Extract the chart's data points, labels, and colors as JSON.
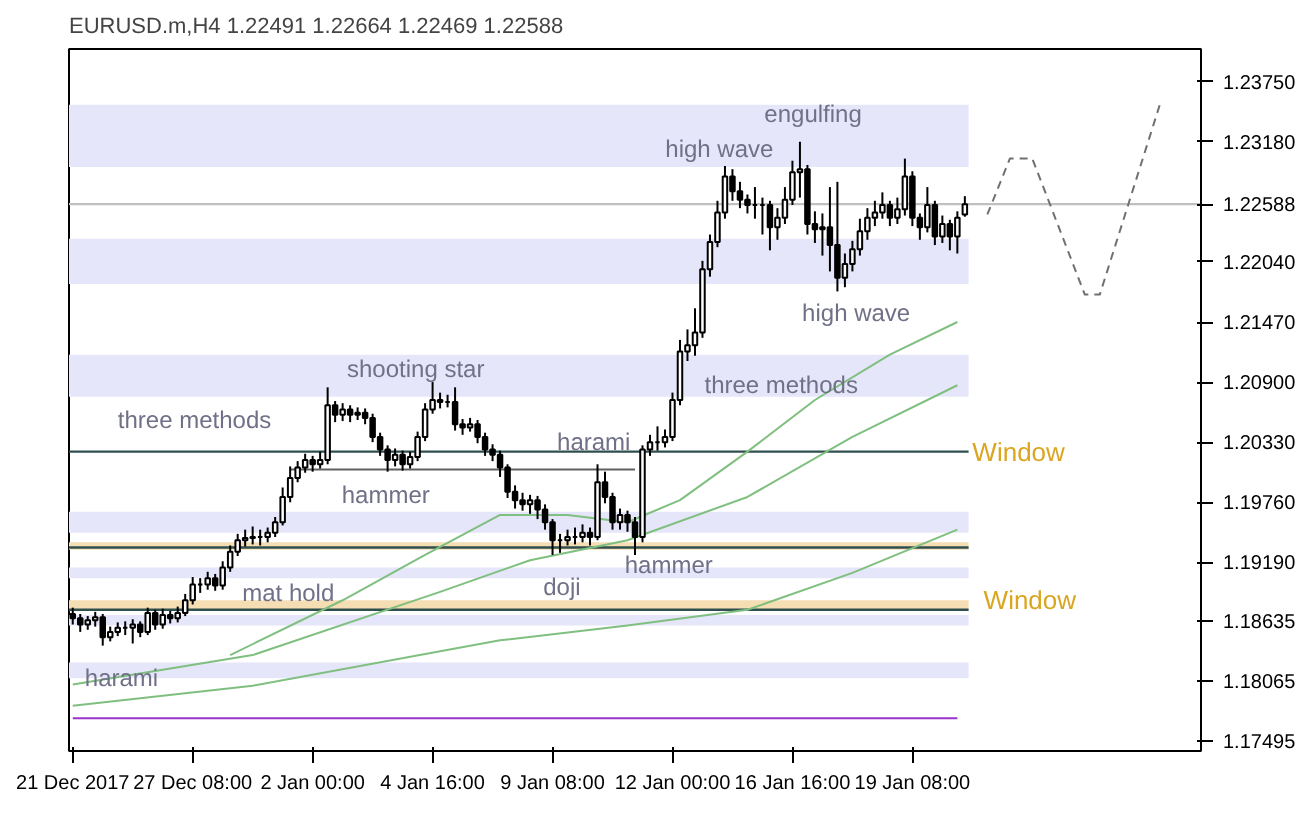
{
  "chart_data": {
    "type": "candlestick",
    "title": "EURUSD.m,H4  1.22491 1.22664 1.22469 1.22588",
    "categories": [
      "21 Dec 2017",
      null,
      null,
      null,
      null,
      null,
      null,
      null,
      null,
      null,
      null,
      null,
      null,
      null,
      null,
      null,
      "27 Dec 08:00",
      null,
      null,
      null,
      null,
      null,
      null,
      null,
      null,
      null,
      null,
      null,
      null,
      null,
      null,
      null,
      "2 Jan 00:00",
      null,
      null,
      null,
      null,
      null,
      null,
      null,
      null,
      null,
      null,
      null,
      null,
      null,
      null,
      null,
      "4 Jan 16:00",
      null,
      null,
      null,
      null,
      null,
      null,
      null,
      null,
      null,
      null,
      null,
      null,
      null,
      null,
      null,
      "9 Jan 08:00",
      null,
      null,
      null,
      null,
      null,
      null,
      null,
      null,
      null,
      null,
      null,
      null,
      null,
      null,
      null,
      "12 Jan 00:00",
      null,
      null,
      null,
      null,
      null,
      null,
      null,
      null,
      null,
      null,
      null,
      null,
      null,
      null,
      null,
      "16 Jan 16:00",
      null,
      null,
      null,
      null,
      null,
      null,
      null,
      null,
      null,
      null,
      null,
      null,
      null,
      null,
      null,
      "19 Jan 08:00",
      null,
      null,
      null,
      null,
      null,
      null,
      null,
      null,
      null,
      null,
      null,
      null,
      null,
      null,
      null,
      null,
      null,
      null,
      null,
      null,
      null,
      null,
      null,
      null,
      null,
      null,
      null,
      null,
      null,
      null,
      null,
      null,
      null,
      null,
      null,
      null,
      null,
      null
    ],
    "ohlc": [
      [
        1.187,
        1.1876,
        1.186,
        1.1866
      ],
      [
        1.1866,
        1.187,
        1.1853,
        1.186
      ],
      [
        1.186,
        1.1868,
        1.1855,
        1.1864
      ],
      [
        1.1864,
        1.1872,
        1.1858,
        1.1867
      ],
      [
        1.1867,
        1.187,
        1.184,
        1.1848
      ],
      [
        1.1848,
        1.1858,
        1.1844,
        1.1853
      ],
      [
        1.1853,
        1.1862,
        1.1849,
        1.1857
      ],
      [
        1.1857,
        1.1863,
        1.185,
        1.1857
      ],
      [
        1.1857,
        1.1865,
        1.1842,
        1.186
      ],
      [
        1.186,
        1.1863,
        1.1848,
        1.1853
      ],
      [
        1.1853,
        1.1876,
        1.185,
        1.1871
      ],
      [
        1.1871,
        1.1874,
        1.1855,
        1.186
      ],
      [
        1.186,
        1.1875,
        1.1856,
        1.1869
      ],
      [
        1.1869,
        1.1873,
        1.1861,
        1.1866
      ],
      [
        1.1866,
        1.1877,
        1.1862,
        1.1871
      ],
      [
        1.1871,
        1.1889,
        1.1868,
        1.1883
      ],
      [
        1.1883,
        1.1905,
        1.1879,
        1.1898
      ],
      [
        1.1898,
        1.1904,
        1.189,
        1.1898
      ],
      [
        1.1898,
        1.191,
        1.1893,
        1.1904
      ],
      [
        1.1904,
        1.1908,
        1.1892,
        1.1897
      ],
      [
        1.1897,
        1.192,
        1.1893,
        1.1914
      ],
      [
        1.1914,
        1.1935,
        1.191,
        1.1929
      ],
      [
        1.1929,
        1.1946,
        1.1925,
        1.194
      ],
      [
        1.194,
        1.195,
        1.1934,
        1.1942
      ],
      [
        1.1942,
        1.1953,
        1.1936,
        1.1943
      ],
      [
        1.1943,
        1.195,
        1.1935,
        1.1943
      ],
      [
        1.1943,
        1.1952,
        1.1938,
        1.1947
      ],
      [
        1.1947,
        1.1962,
        1.1943,
        1.1957
      ],
      [
        1.1957,
        1.199,
        1.1954,
        1.1981
      ],
      [
        1.1981,
        1.201,
        1.1976,
        1.1999
      ],
      [
        1.1999,
        1.2015,
        1.1995,
        1.2009
      ],
      [
        1.2009,
        1.2022,
        1.2004,
        1.2016
      ],
      [
        1.2016,
        1.202,
        1.2005,
        1.2012
      ],
      [
        1.2012,
        1.2024,
        1.2008,
        1.2016
      ],
      [
        1.2016,
        1.2085,
        1.2012,
        1.2068
      ],
      [
        1.2068,
        1.2072,
        1.2052,
        1.2059
      ],
      [
        1.2059,
        1.207,
        1.2053,
        1.2064
      ],
      [
        1.2064,
        1.2068,
        1.2052,
        1.2059
      ],
      [
        1.2059,
        1.2066,
        1.2054,
        1.2061
      ],
      [
        1.2061,
        1.2065,
        1.205,
        1.2056
      ],
      [
        1.2056,
        1.206,
        1.2033,
        1.2038
      ],
      [
        1.2038,
        1.2042,
        1.202,
        1.2026
      ],
      [
        1.2026,
        1.203,
        1.2005,
        1.2016
      ],
      [
        1.2016,
        1.2027,
        1.201,
        1.2021
      ],
      [
        1.2021,
        1.2025,
        1.2006,
        1.2012
      ],
      [
        1.2012,
        1.2024,
        1.2008,
        1.2019
      ],
      [
        1.2019,
        1.2043,
        1.2015,
        1.2038
      ],
      [
        1.2038,
        1.207,
        1.2034,
        1.2064
      ],
      [
        1.2064,
        1.209,
        1.206,
        1.2073
      ],
      [
        1.2073,
        1.208,
        1.2065,
        1.2071
      ],
      [
        1.2071,
        1.2078,
        1.2066,
        1.2071
      ],
      [
        1.2071,
        1.2085,
        1.2044,
        1.205
      ],
      [
        1.205,
        1.2055,
        1.204,
        1.2047
      ],
      [
        1.2047,
        1.2056,
        1.2043,
        1.205
      ],
      [
        1.205,
        1.2054,
        1.2032,
        1.2038
      ],
      [
        1.2038,
        1.2042,
        1.202,
        1.2026
      ],
      [
        1.2026,
        1.2031,
        1.2015,
        1.2021
      ],
      [
        1.2021,
        1.2025,
        1.2,
        1.2009
      ],
      [
        1.2009,
        1.2012,
        1.198,
        1.1986
      ],
      [
        1.1986,
        1.1992,
        1.197,
        1.1978
      ],
      [
        1.1978,
        1.1985,
        1.1968,
        1.1974
      ],
      [
        1.1974,
        1.1983,
        1.1965,
        1.1978
      ],
      [
        1.1978,
        1.1982,
        1.196,
        1.1969
      ],
      [
        1.1969,
        1.1974,
        1.195,
        1.1957
      ],
      [
        1.1957,
        1.196,
        1.1926,
        1.194
      ],
      [
        1.194,
        1.1946,
        1.1928,
        1.194
      ],
      [
        1.194,
        1.195,
        1.1935,
        1.1943
      ],
      [
        1.1943,
        1.1952,
        1.1936,
        1.1943
      ],
      [
        1.1943,
        1.1955,
        1.1938,
        1.1947
      ],
      [
        1.1947,
        1.1952,
        1.1935,
        1.1943
      ],
      [
        1.1943,
        1.2012,
        1.194,
        1.1995
      ],
      [
        1.1995,
        1.2005,
        1.1975,
        1.1981
      ],
      [
        1.1981,
        1.1985,
        1.195,
        1.1957
      ],
      [
        1.1957,
        1.197,
        1.195,
        1.1964
      ],
      [
        1.1964,
        1.1968,
        1.1948,
        1.1957
      ],
      [
        1.1957,
        1.1962,
        1.1926,
        1.1943
      ],
      [
        1.1943,
        1.203,
        1.1938,
        1.2026
      ],
      [
        1.2026,
        1.204,
        1.202,
        1.2033
      ],
      [
        1.2033,
        1.2048,
        1.2025,
        1.2033
      ],
      [
        1.2033,
        1.2045,
        1.2028,
        1.2038
      ],
      [
        1.2038,
        1.208,
        1.2034,
        1.2073
      ],
      [
        1.2073,
        1.213,
        1.2068,
        1.2119
      ],
      [
        1.2119,
        1.214,
        1.211,
        1.2125
      ],
      [
        1.2125,
        1.216,
        1.2115,
        1.2137
      ],
      [
        1.2137,
        1.2205,
        1.2132,
        1.2197
      ],
      [
        1.2197,
        1.223,
        1.219,
        1.2223
      ],
      [
        1.2223,
        1.2262,
        1.2218,
        1.2251
      ],
      [
        1.2251,
        1.2295,
        1.2245,
        1.2285
      ],
      [
        1.2285,
        1.2292,
        1.2262,
        1.2271
      ],
      [
        1.2271,
        1.228,
        1.2255,
        1.2263
      ],
      [
        1.2263,
        1.2268,
        1.225,
        1.2258
      ],
      [
        1.2258,
        1.2275,
        1.2245,
        1.2258
      ],
      [
        1.2258,
        1.2265,
        1.223,
        1.2258
      ],
      [
        1.2258,
        1.2262,
        1.2215,
        1.2237
      ],
      [
        1.2237,
        1.2255,
        1.2225,
        1.2246
      ],
      [
        1.2246,
        1.2275,
        1.224,
        1.2263
      ],
      [
        1.2263,
        1.23,
        1.2258,
        1.2289
      ],
      [
        1.2289,
        1.2318,
        1.2265,
        1.2292
      ],
      [
        1.2292,
        1.2296,
        1.223,
        1.224
      ],
      [
        1.224,
        1.2252,
        1.2222,
        1.2235
      ],
      [
        1.2235,
        1.225,
        1.221,
        1.2237
      ],
      [
        1.2237,
        1.2275,
        1.2195,
        1.222
      ],
      [
        1.222,
        1.228,
        1.2176,
        1.2189
      ],
      [
        1.2189,
        1.2212,
        1.218,
        1.2202
      ],
      [
        1.2202,
        1.2224,
        1.2195,
        1.2216
      ],
      [
        1.2216,
        1.2245,
        1.221,
        1.2233
      ],
      [
        1.2233,
        1.2255,
        1.2225,
        1.2246
      ],
      [
        1.2246,
        1.2262,
        1.2238,
        1.2251
      ],
      [
        1.2251,
        1.227,
        1.2245,
        1.2258
      ],
      [
        1.2258,
        1.2262,
        1.2238,
        1.2246
      ],
      [
        1.2246,
        1.2265,
        1.224,
        1.2254
      ],
      [
        1.2254,
        1.2302,
        1.2248,
        1.2285
      ],
      [
        1.2285,
        1.229,
        1.2238,
        1.2246
      ],
      [
        1.2246,
        1.225,
        1.2225,
        1.2237
      ],
      [
        1.2237,
        1.2275,
        1.2232,
        1.2258
      ],
      [
        1.2258,
        1.2262,
        1.222,
        1.2228
      ],
      [
        1.2228,
        1.2248,
        1.2222,
        1.224
      ],
      [
        1.224,
        1.2244,
        1.2215,
        1.2228
      ],
      [
        1.2228,
        1.2252,
        1.2212,
        1.2246
      ],
      [
        1.22491,
        1.22664,
        1.22469,
        1.22588
      ],
      null,
      null,
      null,
      null,
      null,
      null,
      null,
      null,
      null,
      null,
      null,
      null,
      null,
      null,
      null,
      null,
      null,
      null,
      null,
      null,
      null,
      null,
      null,
      null,
      null,
      null,
      null,
      null,
      null,
      null,
      null
    ],
    "series": [
      {
        "type": "line",
        "color": "#7fbf7f",
        "values": [
          null,
          null,
          null,
          null,
          null,
          null,
          null,
          null,
          null,
          null,
          null,
          null,
          null,
          null,
          null,
          null,
          null,
          null,
          null,
          null,
          null,
          1.1831,
          null,
          null,
          null,
          null,
          null,
          null,
          null,
          null,
          null,
          null,
          null,
          null,
          null,
          null,
          1.1883,
          null,
          null,
          null,
          null,
          null,
          null,
          null,
          null,
          null,
          null,
          1.1926,
          null,
          null,
          null,
          null,
          null,
          null,
          null,
          null,
          null,
          1.1964,
          null,
          null,
          null,
          null,
          null,
          null,
          null,
          null,
          1.1964,
          null,
          null,
          null,
          null,
          null,
          null,
          null,
          1.1957,
          null,
          null,
          null,
          null,
          null,
          null,
          1.1978,
          null,
          null,
          null,
          null,
          null,
          null,
          null,
          null,
          1.2024,
          null,
          null,
          null,
          null,
          null,
          null,
          null,
          null,
          1.2073,
          null,
          null,
          null,
          null,
          null,
          null,
          null,
          null,
          null,
          1.2116,
          null,
          null,
          null,
          null,
          null,
          null,
          null,
          null,
          1.2147,
          null,
          null,
          null,
          null,
          null,
          null,
          null,
          null,
          null,
          null,
          null,
          null,
          null,
          null,
          null,
          null,
          null,
          null,
          null,
          null,
          null,
          null,
          null,
          null,
          null,
          null,
          null,
          null,
          null,
          null,
          null,
          null
        ]
      },
      {
        "type": "line",
        "color": "#7fbf7f",
        "values": [
          1.1803,
          null,
          null,
          null,
          null,
          null,
          null,
          null,
          null,
          null,
          null,
          null,
          null,
          null,
          null,
          null,
          null,
          null,
          null,
          null,
          null,
          null,
          null,
          null,
          1.1831,
          null,
          null,
          null,
          null,
          null,
          null,
          null,
          null,
          null,
          null,
          null,
          null,
          null,
          null,
          null,
          null,
          null,
          null,
          null,
          null,
          null,
          null,
          null,
          null,
          1.1891,
          null,
          null,
          null,
          null,
          null,
          null,
          null,
          null,
          null,
          null,
          null,
          1.1921,
          null,
          null,
          null,
          null,
          null,
          null,
          null,
          null,
          null,
          null,
          null,
          null,
          1.194,
          null,
          null,
          null,
          null,
          null,
          null,
          null,
          null,
          null,
          null,
          null,
          null,
          null,
          null,
          null,
          1.1981,
          null,
          null,
          null,
          null,
          null,
          null,
          null,
          null,
          null,
          null,
          null,
          null,
          null,
          1.2038,
          null,
          null,
          null,
          null,
          null,
          null,
          null,
          null,
          null,
          null,
          null,
          null,
          null,
          1.2087,
          null,
          null,
          null,
          null,
          null,
          null,
          null,
          null,
          null,
          null,
          null,
          null,
          null,
          null,
          null,
          null,
          null,
          null,
          null,
          null,
          null,
          null,
          null,
          null,
          null,
          null,
          null,
          null,
          null,
          null,
          null,
          null
        ]
      },
      {
        "type": "line",
        "color": "#7fbf7f",
        "values": [
          1.1783,
          null,
          null,
          null,
          null,
          null,
          null,
          null,
          null,
          null,
          null,
          null,
          null,
          null,
          null,
          null,
          null,
          null,
          null,
          null,
          null,
          null,
          null,
          null,
          1.1802,
          null,
          null,
          null,
          null,
          null,
          null,
          null,
          null,
          null,
          null,
          null,
          null,
          null,
          null,
          null,
          null,
          null,
          null,
          null,
          null,
          null,
          null,
          null,
          null,
          null,
          null,
          null,
          null,
          null,
          null,
          null,
          null,
          1.1845,
          null,
          null,
          null,
          null,
          null,
          null,
          null,
          null,
          null,
          null,
          null,
          null,
          null,
          null,
          null,
          null,
          1.1859,
          null,
          null,
          null,
          null,
          null,
          null,
          null,
          null,
          null,
          null,
          null,
          null,
          null,
          null,
          null,
          1.1874,
          null,
          null,
          null,
          null,
          null,
          null,
          null,
          null,
          null,
          null,
          null,
          null,
          null,
          1.1909,
          null,
          null,
          null,
          null,
          null,
          null,
          null,
          null,
          null,
          null,
          null,
          null,
          null,
          1.195,
          null,
          null,
          null,
          null,
          null,
          null,
          null,
          null,
          null,
          null,
          null,
          null,
          null,
          null,
          null,
          null,
          null,
          null,
          null,
          null,
          null,
          null,
          null,
          null,
          null,
          null,
          null,
          null,
          null,
          null,
          null,
          null
        ]
      },
      {
        "type": "line",
        "color": "#606060",
        "values": [
          null,
          null,
          null,
          null,
          null,
          null,
          null,
          null,
          null,
          null,
          null,
          null,
          null,
          null,
          null,
          null,
          null,
          null,
          null,
          null,
          null,
          null,
          null,
          null,
          null,
          null,
          null,
          null,
          null,
          1.2007,
          null,
          null,
          null,
          null,
          null,
          null,
          null,
          null,
          null,
          null,
          null,
          null,
          null,
          null,
          null,
          null,
          null,
          null,
          null,
          null,
          null,
          null,
          null,
          null,
          null,
          null,
          null,
          null,
          null,
          null,
          null,
          null,
          null,
          null,
          null,
          null,
          null,
          null,
          null,
          null,
          null,
          null,
          null,
          null,
          null,
          1.2007,
          null,
          null,
          null,
          null,
          null,
          null,
          null,
          null,
          null,
          null,
          null,
          null,
          null,
          null,
          null,
          null,
          null,
          null,
          null,
          null,
          null,
          null,
          null,
          null,
          null,
          null,
          null,
          null,
          null,
          null,
          null,
          null,
          null,
          null,
          null,
          null,
          null,
          null,
          null,
          null,
          null,
          null,
          null,
          null,
          null,
          null,
          null,
          null,
          null,
          null,
          null,
          null,
          null,
          null,
          null,
          null,
          null,
          null,
          null,
          null,
          null,
          null,
          null,
          null,
          null,
          null,
          null,
          null,
          null,
          null,
          null,
          null,
          null,
          null,
          null
        ]
      },
      {
        "type": "line",
        "color": "#9933cc",
        "values": [
          1.1771,
          null,
          null,
          null,
          null,
          null,
          null,
          null,
          null,
          null,
          null,
          null,
          null,
          null,
          null,
          null,
          null,
          null,
          null,
          null,
          null,
          null,
          null,
          null,
          null,
          null,
          null,
          null,
          null,
          null,
          null,
          null,
          null,
          null,
          null,
          null,
          null,
          null,
          null,
          null,
          null,
          null,
          null,
          null,
          null,
          null,
          null,
          null,
          null,
          null,
          null,
          null,
          null,
          null,
          null,
          null,
          null,
          null,
          null,
          null,
          null,
          null,
          null,
          null,
          null,
          null,
          null,
          null,
          null,
          null,
          null,
          null,
          null,
          null,
          null,
          null,
          null,
          null,
          null,
          null,
          null,
          null,
          null,
          null,
          null,
          null,
          null,
          null,
          null,
          null,
          null,
          null,
          null,
          null,
          null,
          null,
          null,
          null,
          null,
          null,
          null,
          null,
          null,
          null,
          null,
          null,
          null,
          null,
          null,
          null,
          null,
          null,
          null,
          null,
          null,
          null,
          null,
          null,
          1.1771,
          null,
          null,
          null,
          null,
          null,
          null,
          null,
          null,
          null,
          null,
          null,
          null,
          null,
          null,
          null,
          null,
          null,
          null,
          null,
          null,
          null,
          null,
          null,
          null,
          null,
          null,
          null,
          null,
          null,
          null,
          null,
          null
        ]
      },
      {
        "type": "line",
        "color": "#707070",
        "line_style": "dashed",
        "values": [
          null,
          null,
          null,
          null,
          null,
          null,
          null,
          null,
          null,
          null,
          null,
          null,
          null,
          null,
          null,
          null,
          null,
          null,
          null,
          null,
          null,
          null,
          null,
          null,
          null,
          null,
          null,
          null,
          null,
          null,
          null,
          null,
          null,
          null,
          null,
          null,
          null,
          null,
          null,
          null,
          null,
          null,
          null,
          null,
          null,
          null,
          null,
          null,
          null,
          null,
          null,
          null,
          null,
          null,
          null,
          null,
          null,
          null,
          null,
          null,
          null,
          null,
          null,
          null,
          null,
          null,
          null,
          null,
          null,
          null,
          null,
          null,
          null,
          null,
          null,
          null,
          null,
          null,
          null,
          null,
          null,
          null,
          null,
          null,
          null,
          null,
          null,
          null,
          null,
          null,
          null,
          null,
          null,
          null,
          null,
          null,
          null,
          null,
          null,
          null,
          null,
          null,
          null,
          null,
          null,
          null,
          null,
          null,
          null,
          null,
          null,
          null,
          null,
          null,
          null,
          null,
          null,
          null,
          null,
          null,
          null,
          null,
          1.2249,
          null,
          null,
          1.2302,
          null,
          null,
          1.2302,
          null,
          null,
          null,
          null,
          null,
          null,
          1.2173,
          null,
          1.2173,
          null,
          null,
          null,
          null,
          null,
          null,
          null,
          1.2353,
          null,
          null,
          null,
          null,
          null
        ]
      }
    ],
    "bands": [
      {
        "axis": "y",
        "from": 1.2294,
        "to": 1.2353,
        "color": "#e6e6fa"
      },
      {
        "axis": "y",
        "from": 1.2183,
        "to": 1.2226,
        "color": "#e6e6fa"
      },
      {
        "axis": "y",
        "from": 1.2076,
        "to": 1.2116,
        "color": "#e6e6fa"
      },
      {
        "axis": "y",
        "from": 1.1947,
        "to": 1.1967,
        "color": "#e6e6fa"
      },
      {
        "axis": "y",
        "from": 1.1931,
        "to": 1.1938,
        "color": "#f5deb3"
      },
      {
        "axis": "y",
        "from": 1.1904,
        "to": 1.1914,
        "color": "#e6e6fa"
      },
      {
        "axis": "y",
        "from": 1.1874,
        "to": 1.1883,
        "color": "#f5deb3",
        "label": "Window"
      },
      {
        "axis": "y",
        "from": 1.1859,
        "to": 1.1869,
        "color": "#e6e6fa"
      },
      {
        "axis": "y",
        "from": 1.1809,
        "to": 1.1824,
        "color": "#e6e6fa"
      }
    ],
    "ref_lines": [
      {
        "axis": "y",
        "value": 1.22588,
        "color": "#c0c0c0"
      },
      {
        "axis": "y",
        "value": 1.2024,
        "color": "#2f4f4f",
        "label": "Window"
      },
      {
        "axis": "y",
        "value": 1.1933,
        "color": "#2f4f4f"
      },
      {
        "axis": "y",
        "value": 1.1874,
        "color": "#2f4f4f"
      }
    ],
    "annotations": [
      "engulfing",
      "high wave",
      "high wave",
      "three methods",
      "shooting star",
      "three methods",
      "harami",
      "hammer",
      "hammer",
      "doji",
      "mat hold",
      "harami"
    ],
    "ylim": [
      1.174,
      1.2406
    ],
    "yticks": [
      {
        "value": 1.17495,
        "label": "1.17495"
      },
      {
        "value": 1.18065,
        "label": "1.18065"
      },
      {
        "value": 1.18635,
        "label": "1.18635"
      },
      {
        "value": 1.1919,
        "label": "1.19190"
      },
      {
        "value": 1.1976,
        "label": "1.19760"
      },
      {
        "value": 1.2033,
        "label": "1.20330"
      },
      {
        "value": 1.209,
        "label": "1.20900"
      },
      {
        "value": 1.2147,
        "label": "1.21470"
      },
      {
        "value": 1.2204,
        "label": "1.22040"
      },
      {
        "value": 1.22588,
        "label": "1.22588"
      },
      {
        "value": 1.2318,
        "label": "1.23180"
      },
      {
        "value": 1.2375,
        "label": "1.23750"
      }
    ],
    "grid": false
  }
}
